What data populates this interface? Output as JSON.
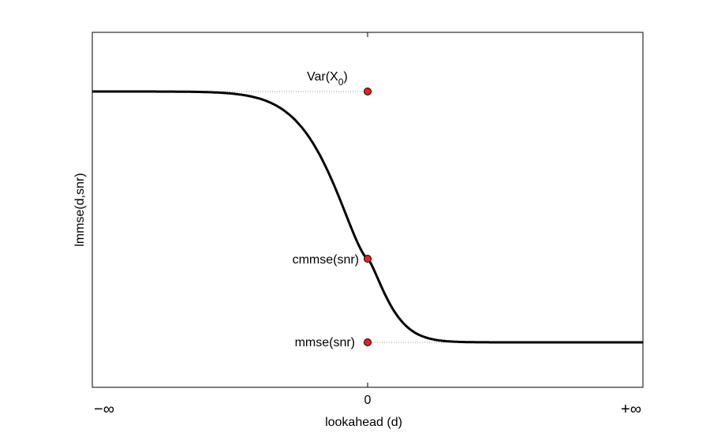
{
  "chart_data": {
    "type": "line",
    "title": "",
    "xlabel": "lookahead (d)",
    "ylabel": "lmmse(d,snr)",
    "x_tick_labels": {
      "left": "−∞",
      "center": "0",
      "right": "+∞"
    },
    "curve_shape": "decreasing sigmoid from Var(X_0) at d = −∞ through cmmse(snr) at d = 0 to mmse(snr) at d = +∞",
    "grid": false,
    "markers": [
      {
        "label": "Var(X",
        "subscript": "0",
        "label_close": ")",
        "x": 0,
        "level": "upper",
        "dotted_guide": "left"
      },
      {
        "label": "cmmse(snr)",
        "x": 0,
        "level": "middle",
        "dotted_guide": "none"
      },
      {
        "label": "mmse(snr)",
        "x": 0,
        "level": "lower",
        "dotted_guide": "right"
      }
    ],
    "colors": {
      "curve": "#000000",
      "marker_fill": "#e8211e",
      "marker_stroke": "#000000",
      "guide": "#9a9a9a",
      "axes": "#000000"
    }
  }
}
